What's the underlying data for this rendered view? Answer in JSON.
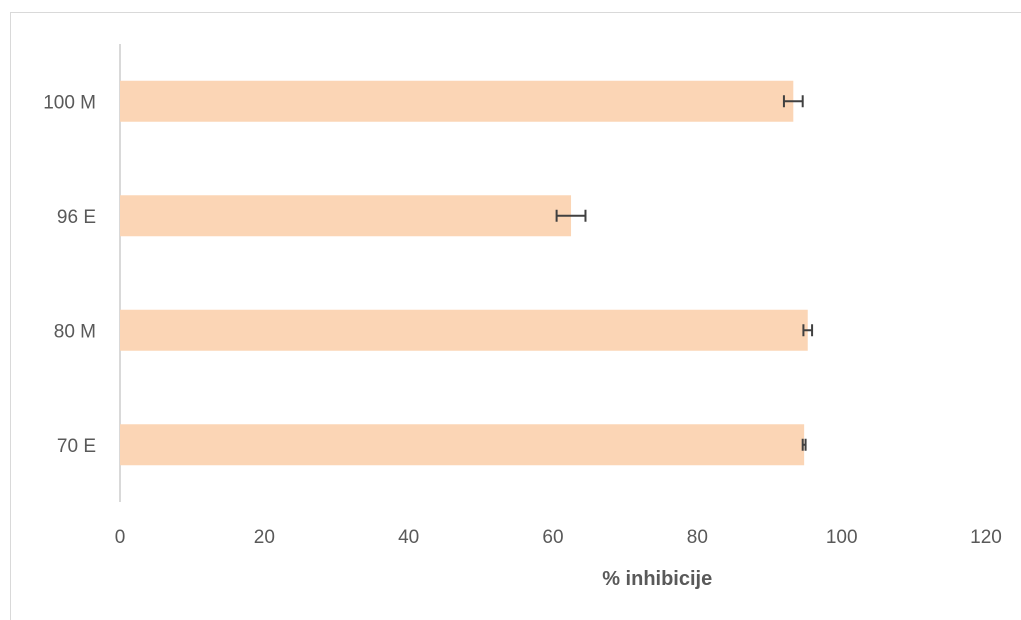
{
  "chart_data": {
    "type": "bar",
    "orientation": "horizontal",
    "categories": [
      "100 M",
      "96 E",
      "80 M",
      "70 E"
    ],
    "values": [
      93.3,
      62.5,
      95.3,
      94.8
    ],
    "errors": [
      1.3,
      2.0,
      0.6,
      0.2
    ],
    "xlabel": "% inhibicije",
    "ylabel": "",
    "xlim": [
      0,
      120
    ],
    "xticks": [
      "0",
      "20",
      "40",
      "60",
      "80",
      "100",
      "120"
    ],
    "grid": false,
    "colors": {
      "bar": "#fbd5b5",
      "error_bar": "#404040",
      "axis": "#d9d9d9",
      "text": "#595959"
    }
  }
}
